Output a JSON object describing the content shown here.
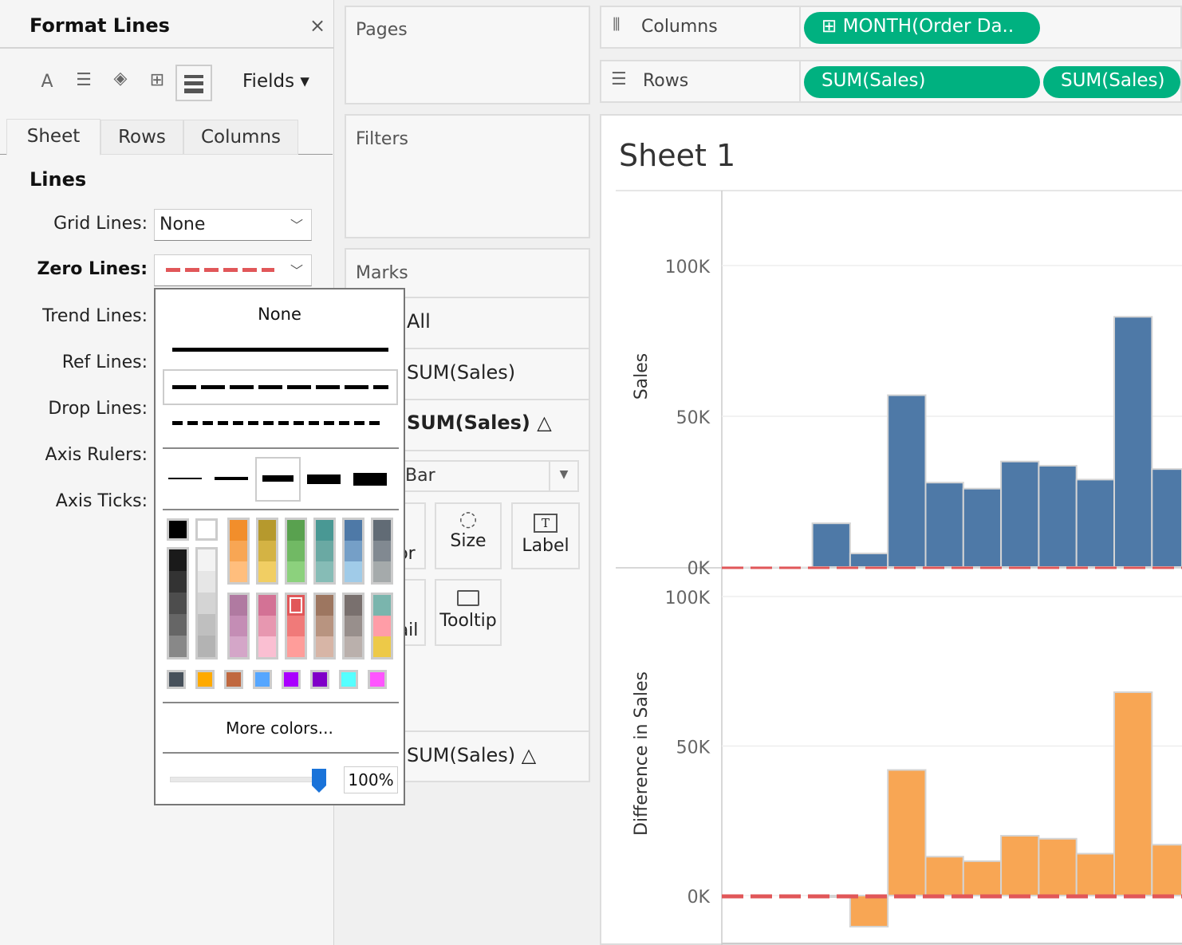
{
  "format_panel": {
    "title": "Format Lines",
    "close": "×",
    "fields_label": "Fields ▾",
    "toolbar_icons": [
      "font-icon",
      "alignment-icon",
      "shading-icon",
      "borders-icon",
      "lines-icon"
    ],
    "tabs": [
      "Sheet",
      "Rows",
      "Columns"
    ],
    "section": "Lines",
    "rows": [
      {
        "label": "Grid Lines:",
        "value": "None"
      },
      {
        "label": "Zero Lines:",
        "value": ""
      },
      {
        "label": "Trend Lines:"
      },
      {
        "label": "Ref Lines:"
      },
      {
        "label": "Drop Lines:"
      },
      {
        "label": "Axis Rulers:"
      },
      {
        "label": "Axis Ticks:"
      }
    ],
    "zero_line_color": "#e15759"
  },
  "popup": {
    "none_label": "None",
    "more_colors": "More colors...",
    "opacity": "100%",
    "color_columns_gray": [
      [
        "#000000"
      ],
      [
        "#ffffff"
      ],
      [
        "#1a1a1a",
        "#333333",
        "#4d4d4d",
        "#666666",
        "#888888"
      ],
      [
        "#f3f3f3",
        "#e6e6e6",
        "#d4d4d4",
        "#bfbfbf",
        "#b3b3b3"
      ]
    ],
    "color_groups_top": [
      [
        "#f28e2b",
        "#f8a654",
        "#ffbe7d"
      ],
      [
        "#b6992d",
        "#d4b344",
        "#f1ce63"
      ],
      [
        "#59a14f",
        "#71b964",
        "#8cd17d"
      ],
      [
        "#499894",
        "#6aa9a3",
        "#86bcb6"
      ],
      [
        "#4e79a7",
        "#759fc7",
        "#a0cbe8"
      ],
      [
        "#616b75",
        "#818991",
        "#a5aaab"
      ]
    ],
    "color_groups_bottom": [
      [
        "#b07aa1",
        "#c48db5",
        "#d4a6c8"
      ],
      [
        "#d37295",
        "#e797b0",
        "#fabfd2"
      ],
      [
        "#e15759",
        "#f07a79",
        "#ff9d9a"
      ],
      [
        "#9d7660",
        "#b89480",
        "#d7b5a6"
      ],
      [
        "#79706e",
        "#988f8c",
        "#bab0ac"
      ],
      [
        "#7ab5ad",
        "#ff9da7",
        "#edc948"
      ]
    ],
    "color_singles": [
      "#47515b",
      "#ffaa00",
      "#c0683f",
      "#55a6ff",
      "#aa00ff",
      "#8000c8",
      "#55ffff",
      "#ff55ff"
    ],
    "selected_color": "#e15759"
  },
  "pages": {
    "label": "Pages"
  },
  "filters": {
    "label": "Filters"
  },
  "marks": {
    "label": "Marks",
    "all": "All",
    "m1": "SUM(Sales)",
    "m2": "SUM(Sales) △",
    "mark_type": "Bar",
    "buttons": [
      "Color",
      "Size",
      "Label",
      "Detail",
      "Tooltip"
    ],
    "bottom": "SUM(Sales) △"
  },
  "shelves": {
    "columns_label": "Columns",
    "rows_label": "Rows",
    "columns_pill": "MONTH(Order Da..",
    "rows_pills": [
      "SUM(Sales)",
      "SUM(Sales)"
    ]
  },
  "sheet": {
    "title": "Sheet 1"
  },
  "chart_data": [
    {
      "type": "bar",
      "ylabel": "Sales",
      "ylim": [
        -1,
        100000
      ],
      "ticks": [
        "100K",
        "50K",
        "0K"
      ],
      "tick_values": [
        100000,
        50000,
        0
      ],
      "color": "#4e79a7",
      "values": [
        null,
        null,
        14500,
        4500,
        57000,
        28000,
        26000,
        35000,
        33600,
        29000,
        83000,
        32500
      ]
    },
    {
      "type": "bar",
      "ylabel": "Difference in Sales",
      "ylim": [
        -15000,
        100000
      ],
      "ticks": [
        "100K",
        "50K",
        "0K"
      ],
      "tick_values": [
        100000,
        50000,
        0
      ],
      "color": "#f8a654",
      "values": [
        null,
        null,
        0,
        -10400,
        42000,
        13000,
        11500,
        20000,
        19000,
        14000,
        68000,
        17000
      ]
    }
  ]
}
